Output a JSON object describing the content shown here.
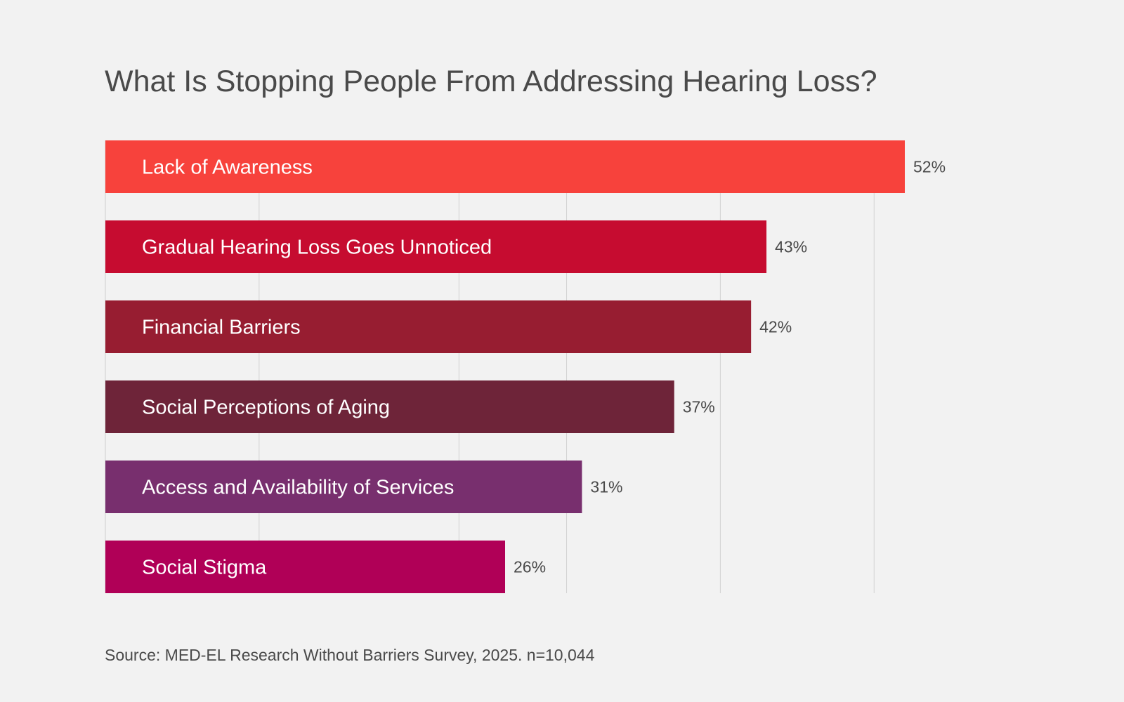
{
  "chart_data": {
    "type": "bar",
    "orientation": "horizontal",
    "title": "What Is Stopping People From Addressing Hearing Loss?",
    "categories": [
      "Lack of Awareness",
      "Gradual Hearing Loss Goes Unnoticed",
      "Financial Barriers",
      "Social Perceptions of Aging",
      "Access and Availability of Services",
      "Social Stigma"
    ],
    "values": [
      52,
      43,
      42,
      37,
      31,
      26
    ],
    "value_labels": [
      "52%",
      "43%",
      "42%",
      "37%",
      "31%",
      "26%"
    ],
    "colors": [
      "#f7423c",
      "#c60c30",
      "#971d31",
      "#6e2439",
      "#782f6e",
      "#b00057"
    ],
    "xlabel": "",
    "ylabel": "",
    "unit": "%",
    "gridlines": [
      10,
      23,
      30,
      40,
      50
    ],
    "xlim": [
      0,
      52
    ],
    "grid": true,
    "legend": "none"
  },
  "source": "Source: MED-EL Research Without Barriers Survey, 2025. n=10,044"
}
